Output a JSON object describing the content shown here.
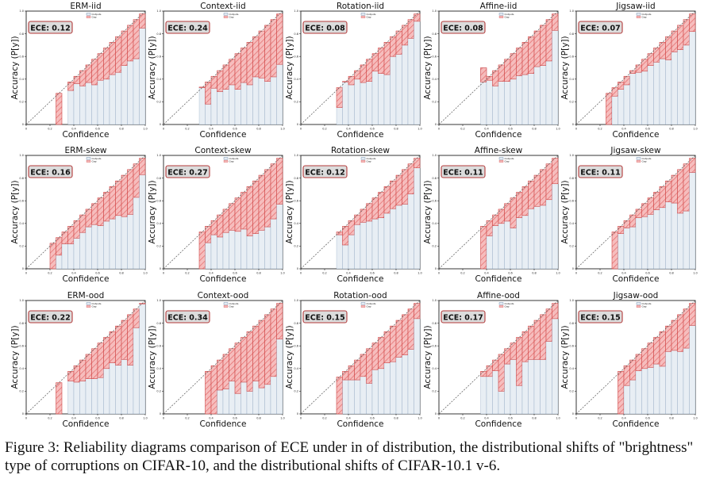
{
  "figure": {
    "caption": "Figure 3: Reliability diagrams comparison of ECE under in of distribution, the distributional shifts of \"brightness\" type of corruptions on CIFAR-10, and the distributional shifts of CIFAR-10.1 v-6.",
    "colors": {
      "output_fill": "#e8eef4",
      "output_stroke": "#1f4f80",
      "gap_fill": "#f6b9b9",
      "gap_hatch": "#e05a5a",
      "ece_box_fill": "#dcdcdc",
      "ece_box_stroke": "#b33a3a"
    }
  },
  "chart_data": [
    {
      "type": "bar",
      "title": "ERM-iid",
      "ece_label": "ECE: 0.12",
      "xlabel": "Confidence",
      "ylabel": "Accuracy (P[y])",
      "xlim": [
        0,
        1
      ],
      "ylim": [
        0,
        1
      ],
      "legend": [
        "Outputs",
        "Gap"
      ],
      "legend_position": "upper-left",
      "x": [
        0.275,
        0.375,
        0.425,
        0.475,
        0.525,
        0.575,
        0.625,
        0.675,
        0.725,
        0.775,
        0.825,
        0.875,
        0.925,
        0.975
      ],
      "accuracy": [
        0.0,
        0.3,
        0.36,
        0.34,
        0.37,
        0.35,
        0.39,
        0.4,
        0.44,
        0.46,
        0.52,
        0.56,
        0.58,
        0.85
      ]
    },
    {
      "type": "bar",
      "title": "Context-iid",
      "ece_label": "ECE: 0.24",
      "xlabel": "Confidence",
      "ylabel": "Accuracy (P[y])",
      "xlim": [
        0,
        1
      ],
      "ylim": [
        0,
        1
      ],
      "legend": [
        "Outputs",
        "Gap"
      ],
      "legend_position": "upper-left",
      "x": [
        0.325,
        0.375,
        0.425,
        0.475,
        0.525,
        0.575,
        0.625,
        0.675,
        0.725,
        0.775,
        0.825,
        0.875,
        0.925,
        0.975
      ],
      "accuracy": [
        0.33,
        0.18,
        0.32,
        0.29,
        0.31,
        0.35,
        0.31,
        0.37,
        0.35,
        0.42,
        0.41,
        0.38,
        0.42,
        0.53
      ]
    },
    {
      "type": "bar",
      "title": "Rotation-iid",
      "ece_label": "ECE: 0.08",
      "xlabel": "Confidence",
      "ylabel": "Accuracy (P[y])",
      "xlim": [
        0,
        1
      ],
      "ylim": [
        0,
        1
      ],
      "legend": [
        "Outputs",
        "Gap"
      ],
      "legend_position": "upper-left",
      "x": [
        0.325,
        0.375,
        0.425,
        0.475,
        0.525,
        0.575,
        0.625,
        0.675,
        0.725,
        0.775,
        0.825,
        0.875,
        0.925,
        0.975
      ],
      "accuracy": [
        0.15,
        0.38,
        0.35,
        0.4,
        0.37,
        0.38,
        0.47,
        0.45,
        0.44,
        0.6,
        0.62,
        0.7,
        0.76,
        0.91
      ]
    },
    {
      "type": "bar",
      "title": "Affine-iid",
      "ece_label": "ECE: 0.08",
      "xlabel": "Confidence",
      "ylabel": "Accuracy (P[y])",
      "xlim": [
        0,
        1
      ],
      "ylim": [
        0,
        1
      ],
      "legend": [
        "Outputs",
        "Gap"
      ],
      "legend_position": "upper-left",
      "x": [
        0.375,
        0.425,
        0.475,
        0.525,
        0.575,
        0.625,
        0.675,
        0.725,
        0.775,
        0.825,
        0.875,
        0.925,
        0.975
      ],
      "accuracy": [
        0.5,
        0.39,
        0.34,
        0.38,
        0.38,
        0.4,
        0.43,
        0.44,
        0.45,
        0.51,
        0.52,
        0.56,
        0.83
      ]
    },
    {
      "type": "bar",
      "title": "Jigsaw-iid",
      "ece_label": "ECE: 0.07",
      "xlabel": "Confidence",
      "ylabel": "Accuracy (P[y])",
      "xlim": [
        0,
        1
      ],
      "ylim": [
        0,
        1
      ],
      "legend": [
        "Outputs",
        "Gap"
      ],
      "legend_position": "upper-left",
      "x": [
        0.275,
        0.325,
        0.375,
        0.425,
        0.475,
        0.525,
        0.575,
        0.625,
        0.675,
        0.725,
        0.775,
        0.825,
        0.875,
        0.925,
        0.975
      ],
      "accuracy": [
        0.0,
        0.25,
        0.31,
        0.35,
        0.45,
        0.46,
        0.47,
        0.52,
        0.55,
        0.58,
        0.57,
        0.64,
        0.66,
        0.7,
        0.82
      ]
    },
    {
      "type": "bar",
      "title": "ERM-skew",
      "ece_label": "ECE: 0.16",
      "xlabel": "Confidence",
      "ylabel": "Accuracy (P[y])",
      "xlim": [
        0,
        1
      ],
      "ylim": [
        0,
        1
      ],
      "legend": [
        "Outputs",
        "Gap"
      ],
      "legend_position": "upper-left",
      "x": [
        0.225,
        0.275,
        0.325,
        0.375,
        0.425,
        0.475,
        0.525,
        0.575,
        0.625,
        0.675,
        0.725,
        0.775,
        0.825,
        0.875,
        0.925,
        0.975
      ],
      "accuracy": [
        0.0,
        0.12,
        0.22,
        0.22,
        0.27,
        0.32,
        0.37,
        0.39,
        0.38,
        0.42,
        0.44,
        0.47,
        0.46,
        0.48,
        0.63,
        0.83
      ]
    },
    {
      "type": "bar",
      "title": "Context-skew",
      "ece_label": "ECE: 0.27",
      "xlabel": "Confidence",
      "ylabel": "Accuracy (P[y])",
      "xlim": [
        0,
        1
      ],
      "ylim": [
        0,
        1
      ],
      "legend": [
        "Outputs",
        "Gap"
      ],
      "legend_position": "upper-left",
      "x": [
        0.325,
        0.375,
        0.425,
        0.475,
        0.525,
        0.575,
        0.625,
        0.675,
        0.725,
        0.775,
        0.825,
        0.875,
        0.925,
        0.975
      ],
      "accuracy": [
        0.0,
        0.23,
        0.3,
        0.28,
        0.32,
        0.34,
        0.33,
        0.35,
        0.29,
        0.31,
        0.34,
        0.37,
        0.44,
        0.57
      ]
    },
    {
      "type": "bar",
      "title": "Rotation-skew",
      "ece_label": "ECE: 0.12",
      "xlabel": "Confidence",
      "ylabel": "Accuracy (P[y])",
      "xlim": [
        0,
        1
      ],
      "ylim": [
        0,
        1
      ],
      "legend": [
        "Outputs",
        "Gap"
      ],
      "legend_position": "upper-left",
      "x": [
        0.325,
        0.375,
        0.425,
        0.475,
        0.525,
        0.575,
        0.625,
        0.675,
        0.725,
        0.775,
        0.825,
        0.875,
        0.925,
        0.975
      ],
      "accuracy": [
        0.3,
        0.21,
        0.3,
        0.39,
        0.41,
        0.42,
        0.44,
        0.45,
        0.49,
        0.53,
        0.56,
        0.57,
        0.66,
        0.89
      ]
    },
    {
      "type": "bar",
      "title": "Affine-skew",
      "ece_label": "ECE: 0.11",
      "xlabel": "Confidence",
      "ylabel": "Accuracy (P[y])",
      "xlim": [
        0,
        1
      ],
      "ylim": [
        0,
        1
      ],
      "legend": [
        "Outputs",
        "Gap"
      ],
      "legend_position": "upper-left",
      "x": [
        0.375,
        0.425,
        0.475,
        0.525,
        0.575,
        0.625,
        0.675,
        0.725,
        0.775,
        0.825,
        0.875,
        0.925,
        0.975
      ],
      "accuracy": [
        0.0,
        0.29,
        0.38,
        0.4,
        0.42,
        0.36,
        0.45,
        0.47,
        0.53,
        0.55,
        0.56,
        0.61,
        0.75
      ]
    },
    {
      "type": "bar",
      "title": "Jigsaw-skew",
      "ece_label": "ECE: 0.11",
      "xlabel": "Confidence",
      "ylabel": "Accuracy (P[y])",
      "xlim": [
        0,
        1
      ],
      "ylim": [
        0,
        1
      ],
      "legend": [
        "Outputs",
        "Gap"
      ],
      "legend_position": "upper-left",
      "x": [
        0.325,
        0.375,
        0.425,
        0.475,
        0.525,
        0.575,
        0.625,
        0.675,
        0.725,
        0.775,
        0.825,
        0.875,
        0.925,
        0.975
      ],
      "accuracy": [
        0.0,
        0.31,
        0.36,
        0.37,
        0.45,
        0.46,
        0.48,
        0.52,
        0.54,
        0.59,
        0.58,
        0.49,
        0.51,
        0.85
      ]
    },
    {
      "type": "bar",
      "title": "ERM-ood",
      "ece_label": "ECE: 0.22",
      "xlabel": "Confidence",
      "ylabel": "Accuracy (P[y])",
      "xlim": [
        0,
        1
      ],
      "ylim": [
        0,
        1
      ],
      "legend": [
        "Outputs",
        "Gap"
      ],
      "legend_position": "upper-left",
      "x": [
        0.275,
        0.375,
        0.425,
        0.475,
        0.525,
        0.575,
        0.625,
        0.675,
        0.725,
        0.775,
        0.825,
        0.875,
        0.925,
        0.975
      ],
      "accuracy": [
        0.0,
        0.29,
        0.28,
        0.29,
        0.31,
        0.31,
        0.32,
        0.4,
        0.45,
        0.43,
        0.48,
        0.43,
        0.76,
        0.97
      ]
    },
    {
      "type": "bar",
      "title": "Context-ood",
      "ece_label": "ECE: 0.34",
      "xlabel": "Confidence",
      "ylabel": "Accuracy (P[y])",
      "xlim": [
        0,
        1
      ],
      "ylim": [
        0,
        1
      ],
      "legend": [
        "Outputs",
        "Gap"
      ],
      "legend_position": "upper-left",
      "x": [
        0.375,
        0.425,
        0.475,
        0.525,
        0.575,
        0.625,
        0.675,
        0.725,
        0.775,
        0.825,
        0.875,
        0.925,
        0.975
      ],
      "accuracy": [
        0.0,
        0.0,
        0.21,
        0.22,
        0.29,
        0.18,
        0.28,
        0.2,
        0.29,
        0.23,
        0.26,
        0.33,
        0.66
      ]
    },
    {
      "type": "bar",
      "title": "Rotation-ood",
      "ece_label": "ECE: 0.15",
      "xlabel": "Confidence",
      "ylabel": "Accuracy (P[y])",
      "xlim": [
        0,
        1
      ],
      "ylim": [
        0,
        1
      ],
      "legend": [
        "Outputs",
        "Gap"
      ],
      "legend_position": "upper-left",
      "x": [
        0.325,
        0.375,
        0.425,
        0.475,
        0.525,
        0.575,
        0.625,
        0.675,
        0.725,
        0.775,
        0.825,
        0.875,
        0.925,
        0.975
      ],
      "accuracy": [
        0.0,
        0.3,
        0.3,
        0.3,
        0.33,
        0.27,
        0.39,
        0.4,
        0.45,
        0.46,
        0.5,
        0.52,
        0.57,
        0.84
      ]
    },
    {
      "type": "bar",
      "title": "Affine-ood",
      "ece_label": "ECE: 0.17",
      "xlabel": "Confidence",
      "ylabel": "Accuracy (P[y])",
      "xlim": [
        0,
        1
      ],
      "ylim": [
        0,
        1
      ],
      "legend": [
        "Outputs",
        "Gap"
      ],
      "legend_position": "upper-left",
      "x": [
        0.375,
        0.425,
        0.475,
        0.525,
        0.575,
        0.625,
        0.675,
        0.725,
        0.775,
        0.825,
        0.875,
        0.925,
        0.975
      ],
      "accuracy": [
        0.33,
        0.33,
        0.38,
        0.2,
        0.44,
        0.48,
        0.25,
        0.46,
        0.48,
        0.48,
        0.48,
        0.64,
        0.84
      ]
    },
    {
      "type": "bar",
      "title": "Jigsaw-ood",
      "ece_label": "ECE: 0.15",
      "xlabel": "Confidence",
      "ylabel": "Accuracy (P[y])",
      "xlim": [
        0,
        1
      ],
      "ylim": [
        0,
        1
      ],
      "legend": [
        "Outputs",
        "Gap"
      ],
      "legend_position": "upper-left",
      "x": [
        0.375,
        0.425,
        0.475,
        0.525,
        0.575,
        0.625,
        0.675,
        0.725,
        0.775,
        0.825,
        0.875,
        0.925,
        0.975
      ],
      "accuracy": [
        0.0,
        0.25,
        0.3,
        0.38,
        0.4,
        0.41,
        0.44,
        0.42,
        0.55,
        0.56,
        0.55,
        0.58,
        0.78
      ]
    }
  ]
}
